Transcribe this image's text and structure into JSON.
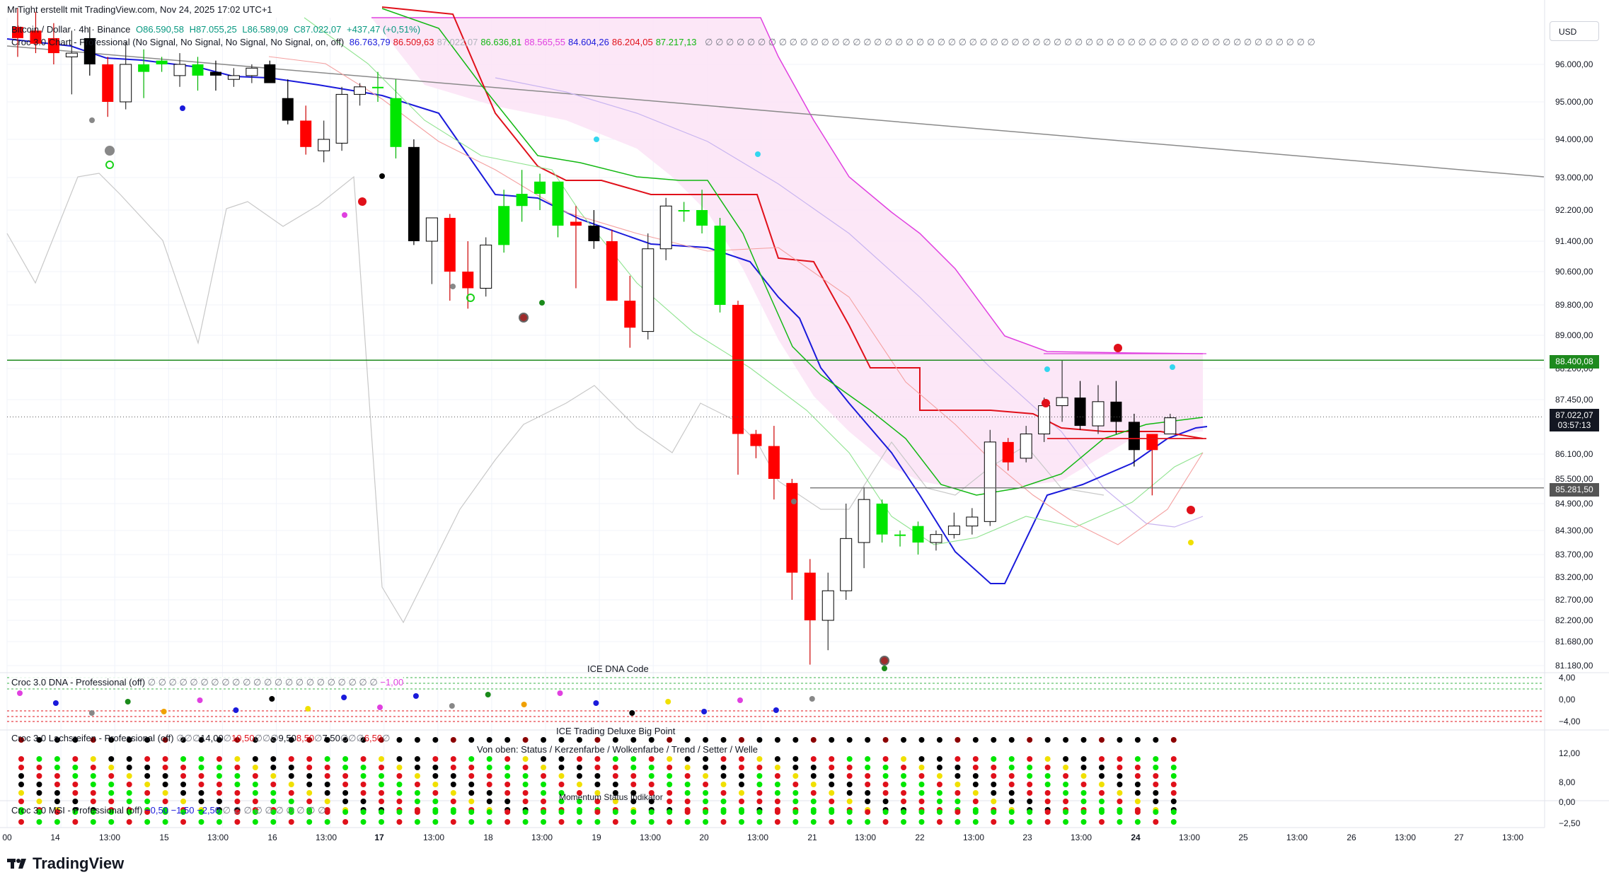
{
  "header": {
    "author_line": "MrTight erstellt mit TradingView.com, Nov 24, 2025 17:02 UTC+1",
    "symbol": "Bitcoin / Dollar · 4h · Binance",
    "ohlc": {
      "o": "O86.590,58",
      "h": "H87.055,25",
      "l": "L86.589,09",
      "c": "C87.022,07",
      "change": "+437,47 (+0,51%)"
    },
    "indicator_name": "Croc 3.0 Chart - Professional (No Signal, No Signal, No Signal, No Signal, on, off)",
    "indicator_values": [
      {
        "text": "86.763,79",
        "color": "#1a1adb"
      },
      {
        "text": "86.509,63",
        "color": "#e0101a"
      },
      {
        "text": "87.022,07",
        "color": "#b2b5be"
      },
      {
        "text": "86.636,81",
        "color": "#12b812"
      },
      {
        "text": "88.565,55",
        "color": "#e040e0"
      },
      {
        "text": "84.604,26",
        "color": "#1a1adb"
      },
      {
        "text": "86.204,05",
        "color": "#e0101a"
      },
      {
        "text": "87.217,13",
        "color": "#12b812"
      }
    ],
    "empty_marks": "∅ ∅ ∅ ∅ ∅ ∅ ∅ ∅ ∅ ∅ ∅ ∅ ∅ ∅ ∅ ∅ ∅ ∅ ∅ ∅ ∅ ∅ ∅ ∅ ∅ ∅ ∅ ∅ ∅ ∅ ∅ ∅ ∅ ∅ ∅ ∅ ∅ ∅ ∅ ∅ ∅ ∅ ∅ ∅ ∅ ∅ ∅ ∅ ∅ ∅ ∅ ∅ ∅ ∅ ∅ ∅ ∅ ∅"
  },
  "currency_button": "USD",
  "colors": {
    "bull": "#00e600",
    "bear": "#ff0000",
    "doji_white": "#ffffff",
    "black_candle": "#000000",
    "cloud": "#fbe3f6",
    "cloud_edge": "#e040e0",
    "blue_line": "#1a1adb",
    "red_line": "#e0101a",
    "green_line": "#12b812",
    "resistance_line": "#1e8a1e",
    "support_line": "#555555"
  },
  "price_tags": {
    "level_high": "88.400,08",
    "current_price": "87.022,07",
    "countdown": "03:57:13",
    "level_low": "85.281,50"
  },
  "panes": {
    "dna": {
      "label": "Croc 3.0 DNA - Professional (off)",
      "marks": "∅ ∅ ∅ ∅ ∅ ∅ ∅ ∅ ∅ ∅ ∅ ∅ ∅ ∅ ∅ ∅ ∅ ∅ ∅ ∅ ∅ ∅",
      "value": "−1,00",
      "title": "ICE DNA Code"
    },
    "lachs": {
      "label": "Croc 3.0 Lachsreifen - Professional (off)",
      "values": [
        "∅",
        "∅",
        "∅",
        "14,00",
        "∅",
        "10,50",
        "∅",
        "∅",
        "∅",
        "9,50",
        "8,50",
        "∅",
        "7,50",
        "∅",
        "∅",
        "∅",
        "6,50",
        "∅"
      ],
      "title": "ICE Trading Deluxe Big Point",
      "subtitle": "Von oben: Status / Kerzenfarbe / Wolkenfarbe / Trend / Setter / Welle"
    },
    "msi": {
      "label": "Croc 3.0 MSI - Professional (off)",
      "values": [
        "−0,50",
        "−1,50",
        "−2,50"
      ],
      "marks": "∅ ∅ ∅ ∅ ∅ ∅ ∅ ∅ ∅ ∅",
      "title": "Momentum Status Indikator"
    }
  },
  "axis_labels": {
    "price": [
      "96.000,00",
      "95.000,00",
      "94.000,00",
      "93.000,00",
      "92.200,00",
      "91.400,00",
      "90.600,00",
      "89.800,00",
      "89.000,00",
      "88.200,00",
      "87.450,00",
      "86.100,00",
      "85.500,00",
      "84.900,00",
      "84.300,00",
      "83.700,00",
      "83.200,00",
      "82.700,00",
      "82.200,00",
      "81.680,00",
      "81.180,00"
    ],
    "dna": [
      "4,00",
      "0,00",
      "−4,00"
    ],
    "lachs": [
      "12,00",
      "8,00",
      "0,00",
      "−2,50"
    ],
    "time": [
      "00",
      "14",
      "13:00",
      "15",
      "13:00",
      "16",
      "13:00",
      "17",
      "13:00",
      "18",
      "13:00",
      "19",
      "13:00",
      "20",
      "13:00",
      "21",
      "13:00",
      "22",
      "13:00",
      "23",
      "13:00",
      "24",
      "13:00",
      "25",
      "13:00",
      "26",
      "13:00",
      "27",
      "13:00"
    ]
  },
  "brand": "TradingView",
  "chart_data": {
    "type": "candlestick",
    "title": "Bitcoin / Dollar · 4h · Binance",
    "ylim": [
      81180,
      96600
    ],
    "x": [
      "Nov 13 20:00",
      "Nov 14 00:00",
      "Nov 14 04:00",
      "Nov 14 08:00",
      "Nov 14 12:00",
      "Nov 14 16:00",
      "Nov 14 20:00",
      "Nov 15 00:00",
      "Nov 15 04:00",
      "Nov 15 08:00",
      "Nov 15 12:00",
      "Nov 15 16:00",
      "Nov 15 20:00",
      "Nov 16 00:00",
      "Nov 16 04:00",
      "Nov 16 08:00",
      "Nov 16 12:00",
      "Nov 16 16:00",
      "Nov 16 20:00",
      "Nov 17 00:00",
      "Nov 17 04:00",
      "Nov 17 08:00",
      "Nov 17 12:00",
      "Nov 17 16:00",
      "Nov 17 20:00",
      "Nov 18 00:00",
      "Nov 18 04:00",
      "Nov 18 08:00",
      "Nov 18 12:00",
      "Nov 18 16:00",
      "Nov 18 20:00",
      "Nov 19 00:00",
      "Nov 19 04:00",
      "Nov 19 08:00",
      "Nov 19 12:00",
      "Nov 19 16:00",
      "Nov 19 20:00",
      "Nov 20 00:00",
      "Nov 20 04:00",
      "Nov 20 08:00",
      "Nov 20 12:00",
      "Nov 20 16:00",
      "Nov 20 20:00",
      "Nov 21 00:00",
      "Nov 21 04:00",
      "Nov 21 08:00",
      "Nov 21 12:00",
      "Nov 21 16:00",
      "Nov 21 20:00",
      "Nov 22 00:00",
      "Nov 22 04:00",
      "Nov 22 08:00",
      "Nov 22 12:00",
      "Nov 22 16:00",
      "Nov 22 20:00",
      "Nov 23 00:00",
      "Nov 23 04:00",
      "Nov 23 08:00",
      "Nov 23 12:00",
      "Nov 23 16:00",
      "Nov 23 20:00",
      "Nov 24 00:00",
      "Nov 24 04:00",
      "Nov 24 08:00",
      "Nov 24 12:00",
      "Nov 24 16:00"
    ],
    "ohlc": [
      [
        97000,
        97500,
        96200,
        96700,
        "r"
      ],
      [
        96900,
        97400,
        96300,
        96550,
        "r"
      ],
      [
        96700,
        97100,
        96000,
        96300,
        "r"
      ],
      [
        96300,
        96900,
        95200,
        96200,
        "w"
      ],
      [
        96700,
        97000,
        95700,
        96000,
        "k"
      ],
      [
        96000,
        96200,
        94600,
        95000,
        "r"
      ],
      [
        95000,
        96600,
        94800,
        96000,
        "w"
      ],
      [
        96000,
        96400,
        95100,
        95800,
        "g"
      ],
      [
        96100,
        96200,
        95800,
        96000,
        "g"
      ],
      [
        95700,
        96300,
        95400,
        96000,
        "w"
      ],
      [
        96000,
        96200,
        95300,
        95700,
        "g"
      ],
      [
        95800,
        96100,
        95300,
        95700,
        "k"
      ],
      [
        95600,
        95900,
        95400,
        95700,
        "w"
      ],
      [
        95700,
        96000,
        95500,
        95900,
        "w"
      ],
      [
        95500,
        96100,
        95500,
        96000,
        "k"
      ],
      [
        95100,
        95600,
        94400,
        94500,
        "k"
      ],
      [
        94500,
        94900,
        93600,
        93800,
        "r"
      ],
      [
        93700,
        94500,
        93400,
        94000,
        "w"
      ],
      [
        93900,
        95400,
        93700,
        95200,
        "w"
      ],
      [
        95200,
        95500,
        94900,
        95400,
        "w"
      ],
      [
        95400,
        95800,
        95000,
        95400,
        "g"
      ],
      [
        95100,
        95600,
        93500,
        93800,
        "g"
      ],
      [
        93800,
        94000,
        91300,
        91400,
        "k"
      ],
      [
        91400,
        92000,
        90300,
        92000,
        "w"
      ],
      [
        92000,
        92100,
        89900,
        90600,
        "r"
      ],
      [
        90600,
        91400,
        89700,
        90200,
        "r"
      ],
      [
        90200,
        91500,
        90000,
        91300,
        "w"
      ],
      [
        91300,
        92700,
        91100,
        92300,
        "g"
      ],
      [
        92300,
        93200,
        91900,
        92600,
        "g"
      ],
      [
        92600,
        93100,
        92200,
        92900,
        "g"
      ],
      [
        92900,
        92900,
        91500,
        91800,
        "g"
      ],
      [
        91800,
        92300,
        90200,
        91900,
        "r"
      ],
      [
        91800,
        92200,
        91200,
        91400,
        "k"
      ],
      [
        91400,
        91700,
        89900,
        89900,
        "r"
      ],
      [
        89900,
        90500,
        88700,
        89200,
        "r"
      ],
      [
        89100,
        91600,
        88900,
        91200,
        "w"
      ],
      [
        91200,
        92500,
        90900,
        92300,
        "w"
      ],
      [
        92200,
        92400,
        91900,
        92200,
        "g"
      ],
      [
        92200,
        92700,
        91600,
        91800,
        "g"
      ],
      [
        91800,
        92000,
        89600,
        89800,
        "g"
      ],
      [
        89800,
        89900,
        85600,
        86600,
        "r"
      ],
      [
        86600,
        86700,
        86000,
        86300,
        "r"
      ],
      [
        86300,
        86800,
        85000,
        85500,
        "r"
      ],
      [
        85400,
        85500,
        82700,
        83300,
        "r"
      ],
      [
        83300,
        83600,
        81200,
        82200,
        "r"
      ],
      [
        82200,
        83300,
        81500,
        82900,
        "w"
      ],
      [
        82900,
        84900,
        82700,
        84100,
        "w"
      ],
      [
        84000,
        85300,
        83400,
        85000,
        "w"
      ],
      [
        84900,
        85000,
        84000,
        84200,
        "g"
      ],
      [
        84200,
        84300,
        83900,
        84200,
        "g"
      ],
      [
        84400,
        84500,
        83700,
        84000,
        "g"
      ],
      [
        84000,
        84300,
        83800,
        84200,
        "w"
      ],
      [
        84200,
        84700,
        84100,
        84400,
        "w"
      ],
      [
        84400,
        84800,
        84200,
        84600,
        "w"
      ],
      [
        84500,
        86700,
        84400,
        86400,
        "w"
      ],
      [
        85900,
        86500,
        85700,
        86400,
        "r"
      ],
      [
        86000,
        86800,
        85900,
        86600,
        "w"
      ],
      [
        86600,
        87500,
        86400,
        87300,
        "w"
      ],
      [
        87300,
        88400,
        86900,
        87500,
        "w"
      ],
      [
        87500,
        87900,
        86700,
        86800,
        "k"
      ],
      [
        86800,
        87800,
        86600,
        87400,
        "w"
      ],
      [
        87400,
        87900,
        86600,
        86900,
        "k"
      ],
      [
        86900,
        87100,
        85800,
        86200,
        "k"
      ],
      [
        86200,
        86600,
        85100,
        86600,
        "r"
      ],
      [
        86600,
        87100,
        86600,
        87000,
        "w"
      ]
    ],
    "levels": [
      88400.08,
      85281.5
    ],
    "current_price": 87022.07
  }
}
